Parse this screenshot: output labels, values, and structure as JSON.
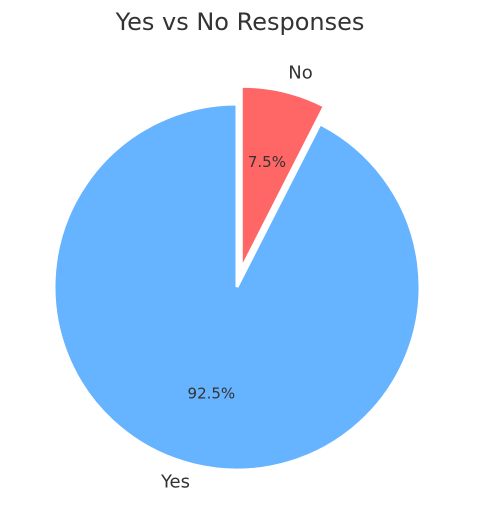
{
  "chart_data": {
    "type": "pie",
    "title": "Yes vs No Responses",
    "categories": [
      "Yes",
      "No"
    ],
    "values": [
      92.5,
      7.5
    ],
    "value_labels": [
      "92.5%",
      "7.5%"
    ],
    "colors": [
      "#66b3ff",
      "#ff6666"
    ],
    "explode": [
      0,
      0.1
    ],
    "startangle": 90
  }
}
